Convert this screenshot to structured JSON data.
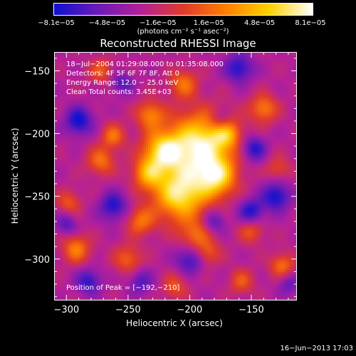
{
  "colorbar": {
    "tick_labels": [
      "−8.1e−05",
      "−4.8e−05",
      "−1.6e−05",
      "1.6e−05",
      "4.8e−05",
      "8.1e−05"
    ],
    "unit_label": "(photons cm⁻² s⁻¹ asec⁻²)",
    "colors": [
      "#1010d0",
      "#6a1ab8",
      "#b3209a",
      "#e03a2a",
      "#ff8000",
      "#ffd200",
      "#ffffff"
    ]
  },
  "chart_data": {
    "type": "heatmap",
    "title": "Reconstructed RHESSI Image",
    "xlabel": "Heliocentric X (arcsec)",
    "ylabel": "Heliocentric Y (arcsec)",
    "xlim": [
      -310,
      -113
    ],
    "ylim": [
      -333,
      -135
    ],
    "x_ticks": [
      -300,
      -250,
      -200,
      -150
    ],
    "x_tick_labels": [
      "−300",
      "−250",
      "−200",
      "−150"
    ],
    "y_ticks": [
      -300,
      -250,
      -200,
      -150
    ],
    "y_tick_labels": [
      "−300",
      "−250",
      "−200",
      "−150"
    ],
    "color_range": [
      -8.1e-05,
      8.1e-05
    ],
    "peak": [
      -192,
      -210
    ],
    "blobs": [
      {
        "x": -192,
        "y": -210,
        "s": 18,
        "a": 1.0
      },
      {
        "x": -208,
        "y": -248,
        "s": 15,
        "a": 0.9
      },
      {
        "x": -222,
        "y": -214,
        "s": 11,
        "a": 0.75
      },
      {
        "x": -178,
        "y": -235,
        "s": 11,
        "a": 0.7
      },
      {
        "x": -234,
        "y": -232,
        "s": 9,
        "a": 0.55
      },
      {
        "x": -170,
        "y": -200,
        "s": 8,
        "a": 0.45
      },
      {
        "x": -232,
        "y": -185,
        "s": 8,
        "a": 0.5
      },
      {
        "x": -262,
        "y": -202,
        "s": 7,
        "a": 0.45
      },
      {
        "x": -205,
        "y": -160,
        "s": 8,
        "a": 0.45
      },
      {
        "x": -272,
        "y": -222,
        "s": 8,
        "a": 0.45
      },
      {
        "x": -240,
        "y": -270,
        "s": 8,
        "a": 0.45
      },
      {
        "x": -196,
        "y": -282,
        "s": 9,
        "a": 0.4
      },
      {
        "x": -140,
        "y": -180,
        "s": 8,
        "a": 0.5
      },
      {
        "x": -292,
        "y": -292,
        "s": 8,
        "a": 0.5
      },
      {
        "x": -250,
        "y": -300,
        "s": 8,
        "a": 0.4
      },
      {
        "x": -298,
        "y": -255,
        "s": 7,
        "a": 0.35
      },
      {
        "x": -125,
        "y": -305,
        "s": 7,
        "a": 0.45
      },
      {
        "x": -150,
        "y": -278,
        "s": 7,
        "a": 0.35
      },
      {
        "x": -158,
        "y": -318,
        "s": 7,
        "a": 0.35
      },
      {
        "x": -272,
        "y": -150,
        "s": 7,
        "a": 0.35
      },
      {
        "x": -212,
        "y": -322,
        "s": 7,
        "a": 0.35
      },
      {
        "x": -185,
        "y": -295,
        "s": 7,
        "a": 0.35
      },
      {
        "x": -128,
        "y": -228,
        "s": 7,
        "a": 0.3
      },
      {
        "x": -160,
        "y": -148,
        "s": 8,
        "a": -0.5
      },
      {
        "x": -290,
        "y": -190,
        "s": 8,
        "a": -0.55
      },
      {
        "x": -148,
        "y": -212,
        "s": 7,
        "a": -0.5
      },
      {
        "x": -130,
        "y": -250,
        "s": 8,
        "a": -0.55
      },
      {
        "x": -262,
        "y": -258,
        "s": 8,
        "a": -0.5
      },
      {
        "x": -200,
        "y": -300,
        "s": 8,
        "a": -0.45
      },
      {
        "x": -150,
        "y": -262,
        "s": 7,
        "a": -0.5
      },
      {
        "x": -282,
        "y": -318,
        "s": 7,
        "a": -0.45
      },
      {
        "x": -240,
        "y": -318,
        "s": 7,
        "a": -0.35
      },
      {
        "x": -175,
        "y": -190,
        "s": 6,
        "a": -0.3
      },
      {
        "x": -300,
        "y": -272,
        "s": 6,
        "a": -0.35
      },
      {
        "x": -255,
        "y": -160,
        "s": 6,
        "a": -0.35
      },
      {
        "x": -180,
        "y": -270,
        "s": 6,
        "a": -0.35
      },
      {
        "x": -120,
        "y": -320,
        "s": 6,
        "a": -0.3
      }
    ],
    "annotations": {
      "time": "18−Jul−2004 01:29:08.000 to 01:35:08.000",
      "detectors": "Detectors: 4F 5F 6F 7F 8F, Att 0",
      "energy": "Energy Range: 12.0 − 25.0 keV",
      "clean": "Clean     Total counts: 3.45E+03",
      "peak": "Position of Peak = [−192,−210]"
    }
  },
  "footer": "16−Jun−2013 17:03"
}
